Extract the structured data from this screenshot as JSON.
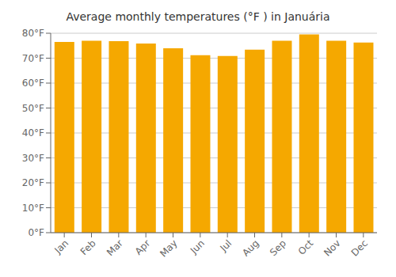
{
  "chart_data": {
    "type": "bar",
    "title": "Average monthly temperatures (°F ) in Januária",
    "categories": [
      "Jan",
      "Feb",
      "Mar",
      "Apr",
      "May",
      "Jun",
      "Jul",
      "Aug",
      "Sep",
      "Oct",
      "Nov",
      "Dec"
    ],
    "values": [
      76.5,
      77.0,
      76.8,
      75.9,
      74.0,
      71.2,
      70.9,
      73.4,
      77.0,
      79.5,
      77.0,
      76.3
    ],
    "color": "#F5A800",
    "ylim": [
      0,
      80
    ],
    "yticks": [
      {
        "value": 0,
        "label": "0°F"
      },
      {
        "value": 10,
        "label": "10°F"
      },
      {
        "value": 20,
        "label": "20°F"
      },
      {
        "value": 30,
        "label": "30°F"
      },
      {
        "value": 40,
        "label": "40°F"
      },
      {
        "value": 50,
        "label": "50°F"
      },
      {
        "value": 60,
        "label": "60°F"
      },
      {
        "value": 70,
        "label": "70°F"
      },
      {
        "value": 80,
        "label": "80°F"
      }
    ],
    "grid": true
  }
}
